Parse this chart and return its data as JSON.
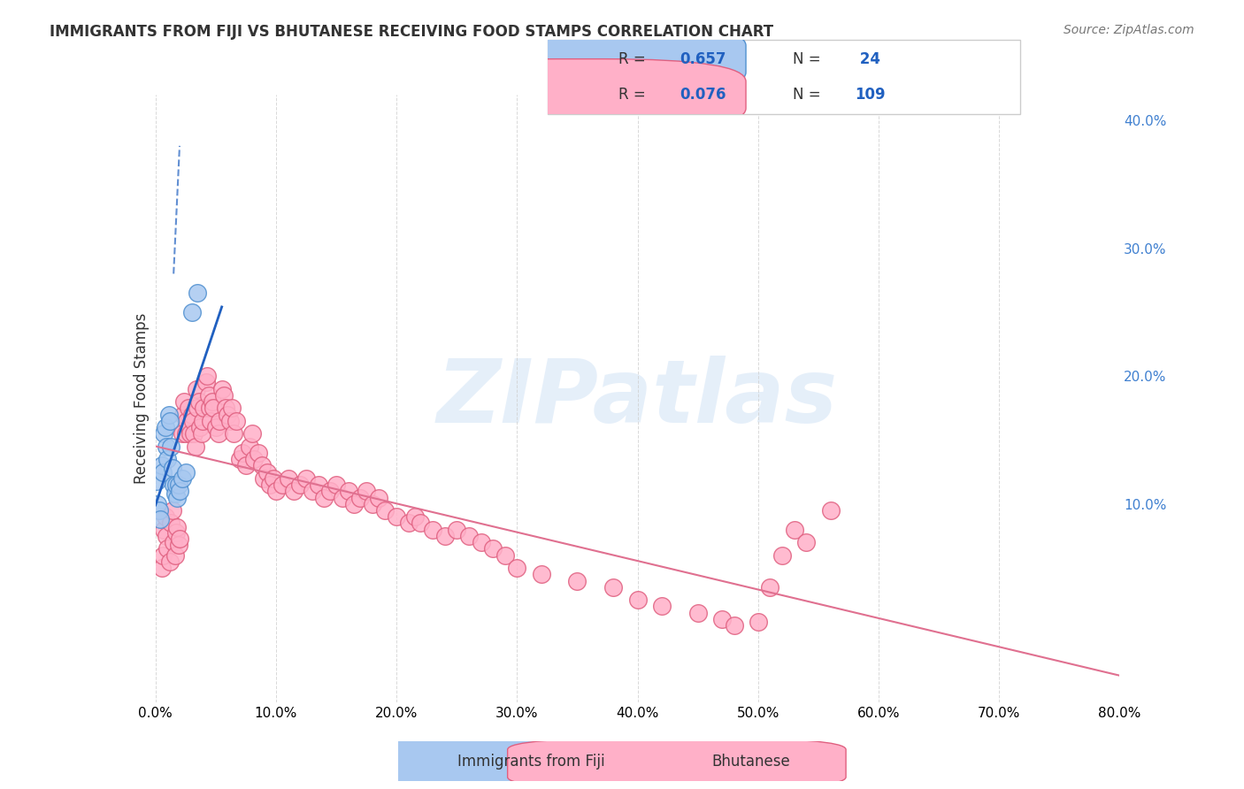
{
  "title": "IMMIGRANTS FROM FIJI VS BHUTANESE RECEIVING FOOD STAMPS CORRELATION CHART",
  "source": "Source: ZipAtlas.com",
  "xlabel_bottom": "",
  "ylabel": "Receiving Food Stamps",
  "xlim": [
    0.0,
    0.8
  ],
  "ylim": [
    -0.055,
    0.42
  ],
  "xticks": [
    0.0,
    0.1,
    0.2,
    0.3,
    0.4,
    0.5,
    0.6,
    0.7,
    0.8
  ],
  "xticklabels": [
    "0.0%",
    "10.0%",
    "20.0%",
    "30.0%",
    "40.0%",
    "50.0%",
    "60.0%",
    "70.0%",
    "80.0%"
  ],
  "yticks_right": [
    0.1,
    0.2,
    0.3,
    0.4
  ],
  "yticklabels_right": [
    "10.0%",
    "20.0%",
    "30.0%",
    "40.0%"
  ],
  "fiji_color": "#a8c8f0",
  "fiji_edge_color": "#5090d0",
  "bhutan_color": "#ffb0c8",
  "bhutan_edge_color": "#e06080",
  "fiji_line_color": "#2060c0",
  "bhutan_line_color": "#e07090",
  "fiji_R": 0.657,
  "fiji_N": 24,
  "bhutan_R": 0.076,
  "bhutan_N": 109,
  "legend_label_fiji": "Immigrants from Fiji",
  "legend_label_bhutan": "Bhutanese",
  "watermark": "ZIPatlas",
  "background_color": "#ffffff",
  "grid_color": "#d0d0d0",
  "fiji_scatter_x": [
    0.001,
    0.002,
    0.003,
    0.004,
    0.005,
    0.006,
    0.007,
    0.008,
    0.009,
    0.01,
    0.011,
    0.012,
    0.013,
    0.014,
    0.015,
    0.016,
    0.017,
    0.018,
    0.019,
    0.02,
    0.022,
    0.025,
    0.03,
    0.035
  ],
  "fiji_scatter_y": [
    0.118,
    0.1,
    0.095,
    0.088,
    0.13,
    0.125,
    0.155,
    0.16,
    0.145,
    0.135,
    0.17,
    0.165,
    0.145,
    0.128,
    0.115,
    0.108,
    0.115,
    0.105,
    0.115,
    0.11,
    0.12,
    0.125,
    0.25,
    0.265
  ],
  "bhutan_scatter_x": [
    0.005,
    0.006,
    0.007,
    0.008,
    0.009,
    0.01,
    0.012,
    0.013,
    0.014,
    0.015,
    0.016,
    0.017,
    0.018,
    0.019,
    0.02,
    0.022,
    0.023,
    0.024,
    0.025,
    0.026,
    0.027,
    0.028,
    0.029,
    0.03,
    0.031,
    0.032,
    0.033,
    0.034,
    0.035,
    0.036,
    0.037,
    0.038,
    0.039,
    0.04,
    0.042,
    0.043,
    0.044,
    0.045,
    0.046,
    0.047,
    0.048,
    0.05,
    0.052,
    0.053,
    0.055,
    0.057,
    0.058,
    0.06,
    0.062,
    0.063,
    0.065,
    0.067,
    0.07,
    0.072,
    0.075,
    0.078,
    0.08,
    0.082,
    0.085,
    0.088,
    0.09,
    0.093,
    0.095,
    0.098,
    0.1,
    0.105,
    0.11,
    0.115,
    0.12,
    0.125,
    0.13,
    0.135,
    0.14,
    0.145,
    0.15,
    0.155,
    0.16,
    0.165,
    0.17,
    0.175,
    0.18,
    0.185,
    0.19,
    0.2,
    0.21,
    0.215,
    0.22,
    0.23,
    0.24,
    0.25,
    0.26,
    0.27,
    0.28,
    0.29,
    0.3,
    0.32,
    0.35,
    0.38,
    0.4,
    0.42,
    0.45,
    0.47,
    0.48,
    0.5,
    0.51,
    0.52,
    0.53,
    0.54,
    0.56
  ],
  "bhutan_scatter_y": [
    0.05,
    0.06,
    0.08,
    0.09,
    0.075,
    0.065,
    0.055,
    0.085,
    0.095,
    0.07,
    0.06,
    0.078,
    0.082,
    0.068,
    0.073,
    0.155,
    0.17,
    0.18,
    0.155,
    0.165,
    0.175,
    0.16,
    0.155,
    0.17,
    0.165,
    0.155,
    0.145,
    0.19,
    0.175,
    0.18,
    0.16,
    0.155,
    0.165,
    0.175,
    0.195,
    0.2,
    0.185,
    0.175,
    0.165,
    0.18,
    0.175,
    0.16,
    0.155,
    0.165,
    0.19,
    0.185,
    0.175,
    0.17,
    0.165,
    0.175,
    0.155,
    0.165,
    0.135,
    0.14,
    0.13,
    0.145,
    0.155,
    0.135,
    0.14,
    0.13,
    0.12,
    0.125,
    0.115,
    0.12,
    0.11,
    0.115,
    0.12,
    0.11,
    0.115,
    0.12,
    0.11,
    0.115,
    0.105,
    0.11,
    0.115,
    0.105,
    0.11,
    0.1,
    0.105,
    0.11,
    0.1,
    0.105,
    0.095,
    0.09,
    0.085,
    0.09,
    0.085,
    0.08,
    0.075,
    0.08,
    0.075,
    0.07,
    0.065,
    0.06,
    0.05,
    0.045,
    0.04,
    0.035,
    0.025,
    0.02,
    0.015,
    0.01,
    0.005,
    0.008,
    0.035,
    0.06,
    0.08,
    0.07,
    0.095
  ]
}
